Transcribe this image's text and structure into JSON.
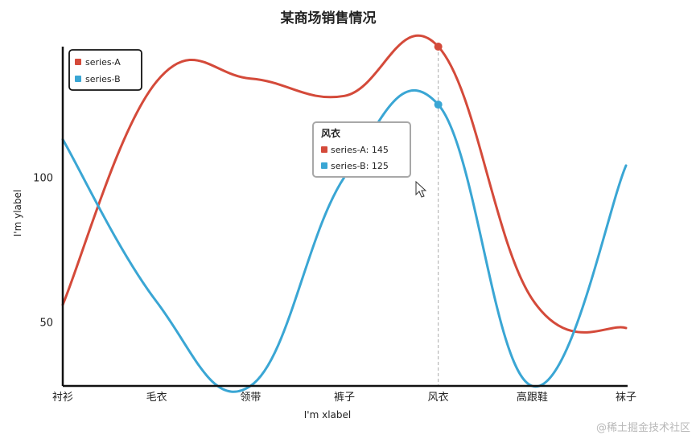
{
  "chart_data": {
    "type": "line",
    "title": "某商场销售情况",
    "xlabel": "I'm xlabel",
    "ylabel": "I'm ylabel",
    "categories": [
      "衬衫",
      "毛衣",
      "领带",
      "裤子",
      "风衣",
      "高跟鞋",
      "袜子"
    ],
    "ylim": [
      28,
      145
    ],
    "yticks": [
      50,
      100
    ],
    "smooth": true,
    "grid": false,
    "legend_position": "top-left",
    "series": [
      {
        "name": "series-A",
        "color": "#d44a3a",
        "values": [
          56,
          133,
          134,
          128,
          145,
          58,
          48
        ]
      },
      {
        "name": "series-B",
        "color": "#3aa6d4",
        "values": [
          113,
          57,
          28,
          100,
          125,
          28,
          104
        ]
      }
    ],
    "tooltip": {
      "category": "风衣",
      "lines": [
        "series-A: 145",
        "series-B: 125"
      ]
    },
    "watermark": "@稀土掘金技术社区"
  }
}
